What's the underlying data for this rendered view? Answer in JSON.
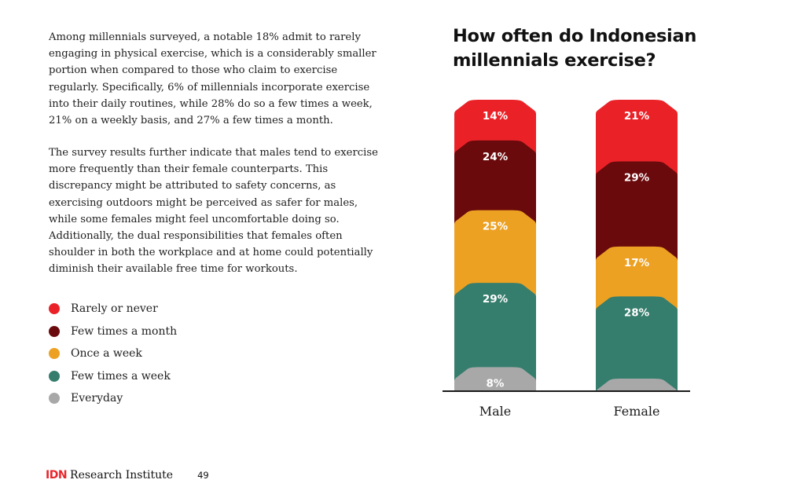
{
  "text": {
    "paragraph1": "Among millennials surveyed, a notable 18% admit to rarely engaging in physical exercise, which is a considerably smaller portion when compared to those who claim to exercise regularly. Specifically, 6% of millennials incorporate exercise into their daily routines, while 28% do so a few times a week, 21% on a weekly basis, and 27% a few times a month.",
    "paragraph2": "The survey results further indicate that males tend to exercise more frequently than their female counterparts. This discrepancy might be attributed to safety concerns, as exercising outdoors might be perceived as safer for males, while some females might feel uncomfortable doing so. Additionally, the dual responsibilities that females often shoulder in both the workplace and at home could potentially diminish their available free time for workouts."
  },
  "footer": {
    "brand_idn": "IDN",
    "brand_rest": "Research Institute",
    "page_number": "49"
  },
  "chart_data": {
    "type": "bar",
    "stacked": true,
    "title": "How often do Indonesian millennials exercise?",
    "categories": [
      "Male",
      "Female"
    ],
    "series": [
      {
        "name": "Everyday",
        "color": "#a8a8a8",
        "values": [
          8,
          4
        ],
        "labels": [
          "8%",
          "4%"
        ]
      },
      {
        "name": "Few times a week",
        "color": "#357d6d",
        "values": [
          29,
          28
        ],
        "labels": [
          "29%",
          "28%"
        ]
      },
      {
        "name": "Once a week",
        "color": "#eda122",
        "values": [
          25,
          17
        ],
        "labels": [
          "25%",
          "17%"
        ]
      },
      {
        "name": "Few times a month",
        "color": "#6b0a0c",
        "values": [
          24,
          29
        ],
        "labels": [
          "24%",
          "29%"
        ]
      },
      {
        "name": "Rarely or never",
        "color": "#ea2228",
        "values": [
          14,
          21
        ],
        "labels": [
          "14%",
          "21%"
        ]
      }
    ],
    "legend_order": [
      "Rarely or never",
      "Few times a month",
      "Once a week",
      "Few times a week",
      "Everyday"
    ],
    "legend_placement": "left",
    "ylim": [
      0,
      100
    ],
    "grid": false
  }
}
